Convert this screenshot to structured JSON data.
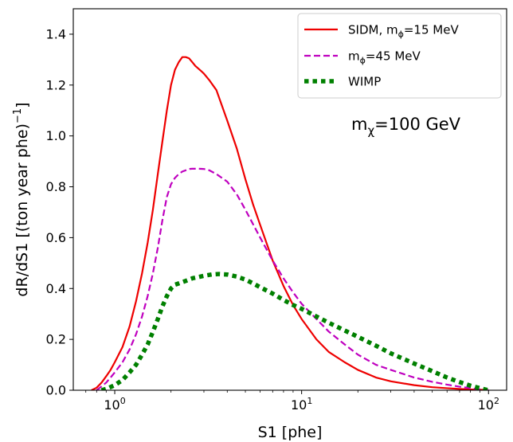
{
  "chart_data": {
    "type": "line",
    "xlabel": "S1 [phe]",
    "ylabel": "dR/dS1 [(ton year phe)",
    "ylabel_sup": "−1",
    "ylabel_suffix": "]",
    "xscale": "log",
    "xlim": [
      0.6,
      125
    ],
    "ylim": [
      0,
      1.5
    ],
    "yticks": [
      0.0,
      0.2,
      0.4,
      0.6,
      0.8,
      1.0,
      1.2,
      1.4
    ],
    "ytick_labels": [
      "0.0",
      "0.2",
      "0.4",
      "0.6",
      "0.8",
      "1.0",
      "1.2",
      "1.4"
    ],
    "xticks": [
      {
        "value": 1,
        "base": "10",
        "exp": "0"
      },
      {
        "value": 10,
        "base": "10",
        "exp": "1"
      },
      {
        "value": 100,
        "base": "10",
        "exp": "2"
      }
    ],
    "grid": false,
    "legend_position": "top-right",
    "annotation": {
      "main": "m",
      "sub": "χ",
      "rest": "=100 GeV"
    },
    "series": [
      {
        "name": "SIDM, mϕ=15 MeV",
        "legend_main": "SIDM, m",
        "legend_sub": "ϕ",
        "legend_rest": "=15 MeV",
        "color": "#ee0000",
        "style": "solid",
        "x": [
          0.75,
          0.8,
          0.85,
          0.9,
          0.95,
          1.0,
          1.1,
          1.2,
          1.3,
          1.4,
          1.5,
          1.6,
          1.7,
          1.8,
          1.9,
          2.0,
          2.1,
          2.2,
          2.3,
          2.4,
          2.5,
          2.6,
          2.7,
          2.8,
          2.9,
          3.0,
          3.2,
          3.5,
          4.0,
          4.5,
          5.0,
          5.5,
          6.0,
          7.0,
          8.0,
          9.0,
          10,
          12,
          14,
          17,
          20,
          25,
          30,
          40,
          50,
          60,
          70,
          80,
          90,
          100
        ],
        "y": [
          0.0,
          0.01,
          0.03,
          0.055,
          0.08,
          0.11,
          0.17,
          0.25,
          0.35,
          0.46,
          0.58,
          0.71,
          0.85,
          0.98,
          1.1,
          1.2,
          1.26,
          1.29,
          1.31,
          1.31,
          1.305,
          1.29,
          1.275,
          1.265,
          1.255,
          1.245,
          1.22,
          1.18,
          1.06,
          0.95,
          0.83,
          0.73,
          0.65,
          0.51,
          0.41,
          0.335,
          0.28,
          0.2,
          0.15,
          0.11,
          0.08,
          0.05,
          0.035,
          0.02,
          0.012,
          0.008,
          0.005,
          0.003,
          0.002,
          0.0
        ]
      },
      {
        "name": "mϕ=45 MeV",
        "legend_main": "m",
        "legend_sub": "ϕ",
        "legend_rest": "=45 MeV",
        "color": "#bf00bf",
        "style": "dashed",
        "x": [
          0.8,
          0.85,
          0.9,
          0.95,
          1.0,
          1.1,
          1.2,
          1.3,
          1.4,
          1.5,
          1.6,
          1.7,
          1.8,
          1.9,
          2.0,
          2.1,
          2.2,
          2.3,
          2.4,
          2.5,
          2.6,
          2.8,
          3.0,
          3.2,
          3.5,
          4.0,
          4.5,
          5.0,
          6.0,
          7.0,
          8.0,
          9.0,
          10,
          12,
          14,
          17,
          20,
          25,
          30,
          40,
          50,
          60,
          70,
          80,
          100
        ],
        "y": [
          0.0,
          0.015,
          0.03,
          0.05,
          0.07,
          0.11,
          0.16,
          0.22,
          0.29,
          0.37,
          0.46,
          0.56,
          0.67,
          0.76,
          0.81,
          0.835,
          0.85,
          0.86,
          0.865,
          0.87,
          0.871,
          0.871,
          0.87,
          0.865,
          0.85,
          0.82,
          0.77,
          0.71,
          0.6,
          0.51,
          0.44,
          0.385,
          0.34,
          0.28,
          0.23,
          0.18,
          0.14,
          0.1,
          0.08,
          0.05,
          0.033,
          0.022,
          0.014,
          0.008,
          0.0
        ]
      },
      {
        "name": "WIMP",
        "legend_main": "WIMP",
        "legend_sub": "",
        "legend_rest": "",
        "color": "#008000",
        "style": "dotted",
        "x": [
          0.85,
          0.9,
          1.0,
          1.1,
          1.2,
          1.3,
          1.4,
          1.5,
          1.6,
          1.7,
          1.8,
          1.9,
          2.0,
          2.1,
          2.2,
          2.4,
          2.6,
          2.8,
          3.0,
          3.3,
          3.6,
          4.0,
          4.5,
          5.0,
          5.5,
          6.0,
          7.0,
          8.0,
          9.0,
          10,
          12,
          14,
          17,
          20,
          25,
          30,
          40,
          50,
          60,
          70,
          80,
          90,
          100
        ],
        "y": [
          0.0,
          0.005,
          0.02,
          0.04,
          0.07,
          0.1,
          0.14,
          0.18,
          0.23,
          0.28,
          0.33,
          0.37,
          0.4,
          0.415,
          0.42,
          0.43,
          0.44,
          0.445,
          0.45,
          0.455,
          0.457,
          0.455,
          0.447,
          0.435,
          0.42,
          0.405,
          0.38,
          0.355,
          0.335,
          0.32,
          0.29,
          0.265,
          0.235,
          0.21,
          0.175,
          0.145,
          0.105,
          0.075,
          0.05,
          0.032,
          0.018,
          0.008,
          0.0
        ]
      }
    ]
  }
}
